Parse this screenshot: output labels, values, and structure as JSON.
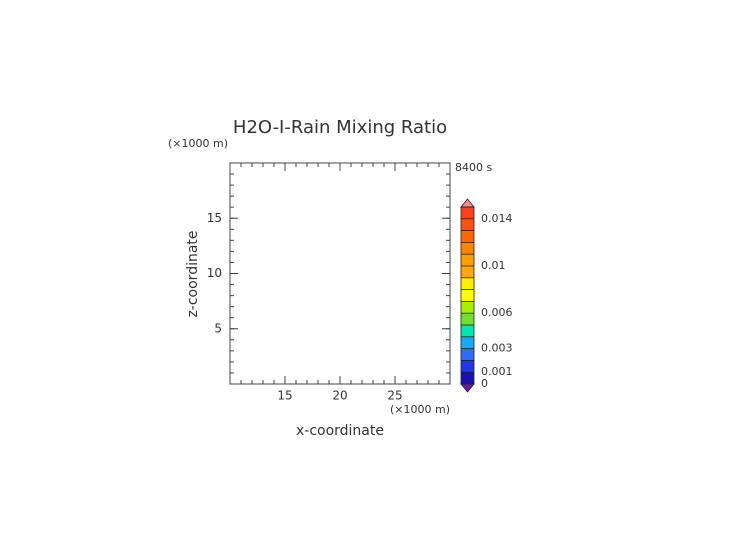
{
  "chart_data": {
    "type": "contour",
    "title": "H2O-I-Rain Mixing Ratio",
    "x_label": "x-coordinate",
    "y_label": "z-coordinate",
    "x_unit": "(×1000 m)",
    "y_unit": "(×1000 m)",
    "time_label": "8400 s",
    "xlim": [
      10,
      30
    ],
    "xticks": [
      15,
      20,
      25
    ],
    "ylim": [
      0,
      20
    ],
    "yticks": [
      5,
      10,
      15
    ],
    "colorbar": {
      "levels": [
        0,
        0.001,
        0.002,
        0.003,
        0.004,
        0.005,
        0.006,
        0.007,
        0.008,
        0.009,
        0.01,
        0.011,
        0.012,
        0.013,
        0.014,
        0.015
      ],
      "colors": [
        "#1a10b0",
        "#2038e8",
        "#2e6cff",
        "#18a8ff",
        "#00e6b0",
        "#70e030",
        "#a8f000",
        "#ffff00",
        "#ffee00",
        "#ffa800",
        "#ff9c00",
        "#ff8400",
        "#ff6800",
        "#ff5010",
        "#ff4020"
      ],
      "under_color": "#6a1aa0",
      "over_color": "#ff8c8c",
      "ticks": [
        0,
        0.001,
        0.003,
        0.006,
        0.01,
        0.014
      ]
    }
  }
}
